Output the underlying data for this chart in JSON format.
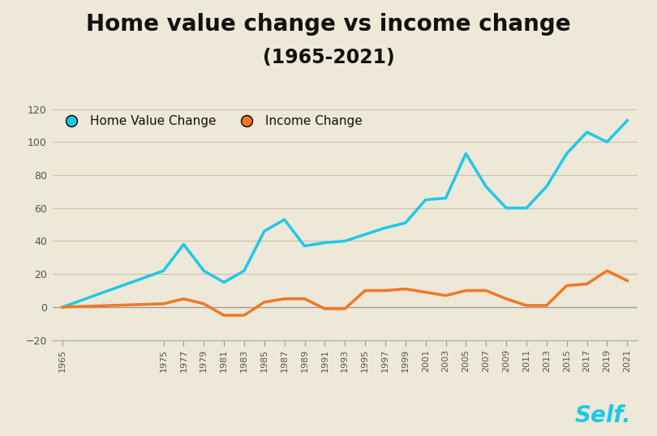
{
  "title_line1": "Home value change vs income change",
  "title_line2": "(1965-2021)",
  "background_color": "#ede8d8",
  "plot_bg_color": "#ede8d8",
  "grid_color": "#c8c2ae",
  "home_value_color": "#1ec8e8",
  "income_color": "#f07820",
  "home_value_label": "Home Value Change",
  "income_label": "Income Change",
  "ylim": [
    -20,
    120
  ],
  "yticks": [
    -20,
    0,
    20,
    40,
    60,
    80,
    100,
    120
  ],
  "years": [
    1965,
    1975,
    1977,
    1979,
    1981,
    1983,
    1985,
    1987,
    1989,
    1991,
    1993,
    1995,
    1997,
    1999,
    2001,
    2003,
    2005,
    2007,
    2009,
    2011,
    2013,
    2015,
    2017,
    2019,
    2021
  ],
  "home_value": [
    0,
    22,
    38,
    22,
    15,
    22,
    46,
    53,
    37,
    39,
    40,
    44,
    48,
    51,
    65,
    66,
    93,
    73,
    60,
    60,
    73,
    93,
    106,
    100,
    113
  ],
  "income": [
    0,
    2,
    5,
    2,
    -5,
    -5,
    3,
    5,
    5,
    -1,
    -1,
    10,
    10,
    11,
    9,
    7,
    10,
    10,
    5,
    1,
    1,
    13,
    14,
    22,
    16
  ],
  "self_logo_color": "#1ec8e8",
  "legend_dot_size": 10,
  "line_width": 2.5,
  "title_fontsize": 20,
  "subtitle_fontsize": 17,
  "tick_fontsize": 8,
  "ytick_fontsize": 9
}
